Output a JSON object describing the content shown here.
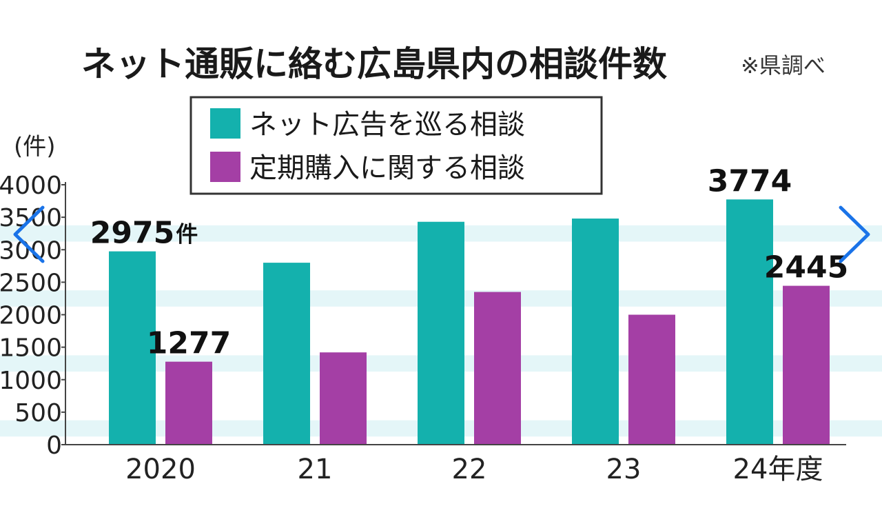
{
  "colors": {
    "series1": "#14b1ad",
    "series2": "#a43fa5",
    "band": "#e4f6f8",
    "nav": "#1a73e8"
  },
  "nav": {
    "prev_icon": "chevron-left-icon",
    "next_icon": "chevron-right-icon"
  },
  "chart_data": {
    "type": "bar",
    "title": "ネット通販に絡む広島県内の相談件数",
    "source": "※県調べ",
    "ylabel": "(件)",
    "ylim": [
      0,
      4000
    ],
    "yticks": [
      0,
      500,
      1000,
      1500,
      2000,
      2500,
      3000,
      3500,
      4000
    ],
    "grid": false,
    "legend_position": "top-center",
    "categories": [
      "2020",
      "21",
      "22",
      "23",
      "24年度"
    ],
    "series": [
      {
        "name": "ネット広告を巡る相談",
        "values": [
          2975,
          2800,
          3430,
          3480,
          3774
        ]
      },
      {
        "name": "定期購入に関する相談",
        "values": [
          1277,
          1420,
          2350,
          2000,
          2445
        ]
      }
    ],
    "data_labels": [
      {
        "series": 0,
        "index": 0,
        "text": "2975",
        "unit": "件"
      },
      {
        "series": 1,
        "index": 0,
        "text": "1277",
        "unit": ""
      },
      {
        "series": 0,
        "index": 4,
        "text": "3774",
        "unit": ""
      },
      {
        "series": 1,
        "index": 4,
        "text": "2445",
        "unit": ""
      }
    ]
  }
}
